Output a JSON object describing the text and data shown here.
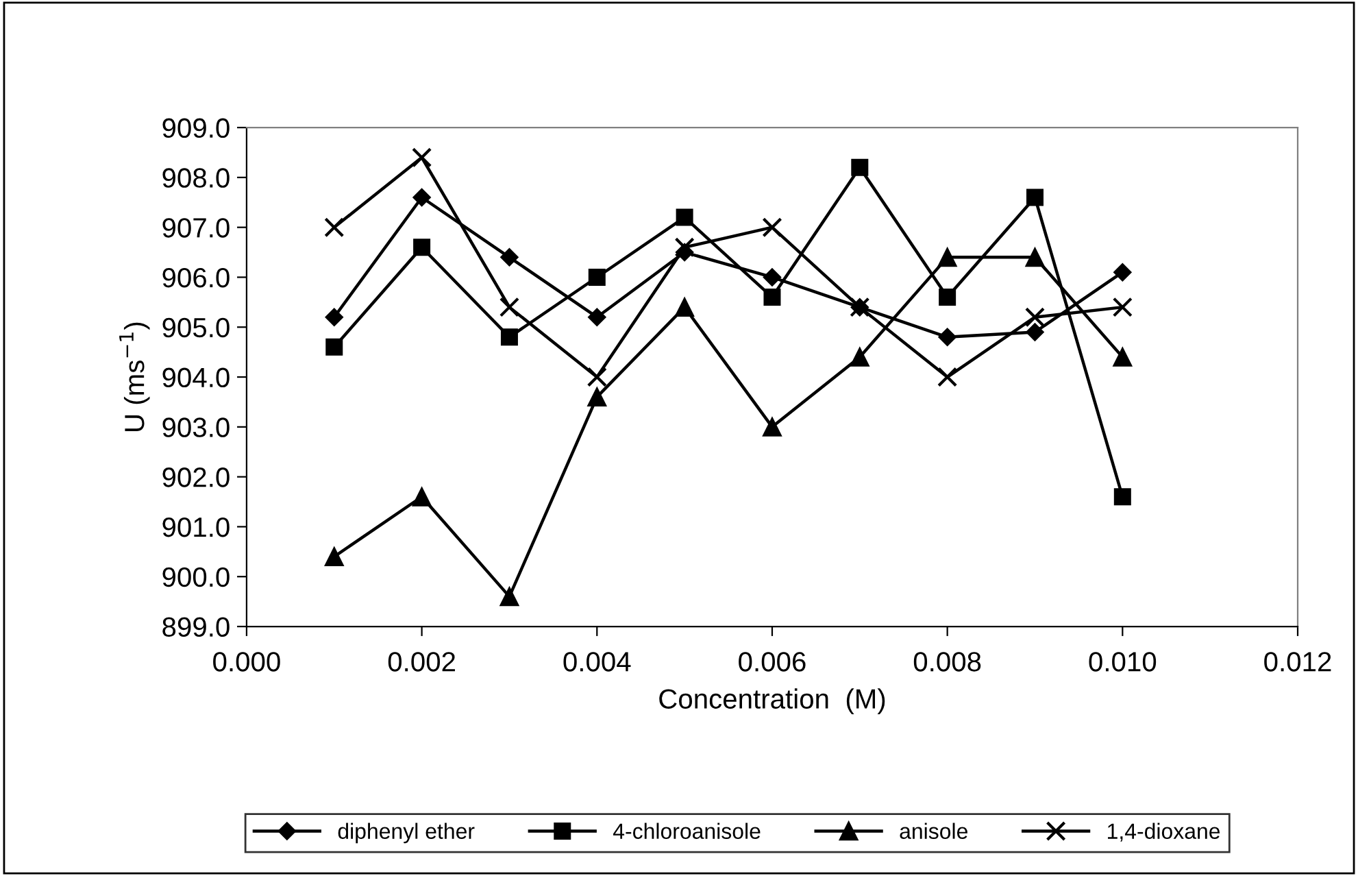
{
  "chart_data": {
    "type": "line",
    "xlabel": "Concentration  (M)",
    "ylabel": "U (ms$^{−1}$)",
    "x": [
      0.001,
      0.002,
      0.003,
      0.004,
      0.005,
      0.006,
      0.007,
      0.008,
      0.009,
      0.01
    ],
    "xlim": [
      0.0,
      0.012
    ],
    "xticks": [
      {
        "value": 0.0,
        "label": "0.000"
      },
      {
        "value": 0.002,
        "label": "0.002"
      },
      {
        "value": 0.004,
        "label": "0.004"
      },
      {
        "value": 0.006,
        "label": "0.006"
      },
      {
        "value": 0.008,
        "label": "0.008"
      },
      {
        "value": 0.01,
        "label": "0.010"
      },
      {
        "value": 0.012,
        "label": "0.012"
      }
    ],
    "ylim": [
      899,
      909
    ],
    "yticks": [
      {
        "value": 899,
        "label": "899.0"
      },
      {
        "value": 900,
        "label": "900.0"
      },
      {
        "value": 901,
        "label": "901.0"
      },
      {
        "value": 902,
        "label": "902.0"
      },
      {
        "value": 903,
        "label": "903.0"
      },
      {
        "value": 904,
        "label": "904.0"
      },
      {
        "value": 905,
        "label": "905.0"
      },
      {
        "value": 906,
        "label": "906.0"
      },
      {
        "value": 907,
        "label": "907.0"
      },
      {
        "value": 908,
        "label": "908.0"
      },
      {
        "value": 909,
        "label": "909.0"
      }
    ],
    "grid": false,
    "legend": "bottom",
    "line_style": "solid",
    "series": [
      {
        "name": "diphenyl ether",
        "color": "#000000",
        "marker": "diamond",
        "values": [
          905.2,
          907.6,
          906.4,
          905.2,
          906.5,
          906.0,
          905.4,
          904.8,
          904.9,
          906.1
        ]
      },
      {
        "name": "4-chloroanisole",
        "color": "#000000",
        "marker": "square",
        "values": [
          904.6,
          906.6,
          904.8,
          906.0,
          907.2,
          905.6,
          908.2,
          905.6,
          907.6,
          901.6
        ]
      },
      {
        "name": "anisole",
        "color": "#000000",
        "marker": "triangle",
        "values": [
          900.4,
          901.6,
          899.6,
          903.6,
          905.4,
          903.0,
          904.4,
          906.4,
          906.4,
          904.4
        ]
      },
      {
        "name": "1,4-dioxane",
        "color": "#000000",
        "marker": "cross",
        "values": [
          907.0,
          908.4,
          905.4,
          904.0,
          906.6,
          907.0,
          905.4,
          904.0,
          905.2,
          905.4
        ]
      }
    ]
  }
}
